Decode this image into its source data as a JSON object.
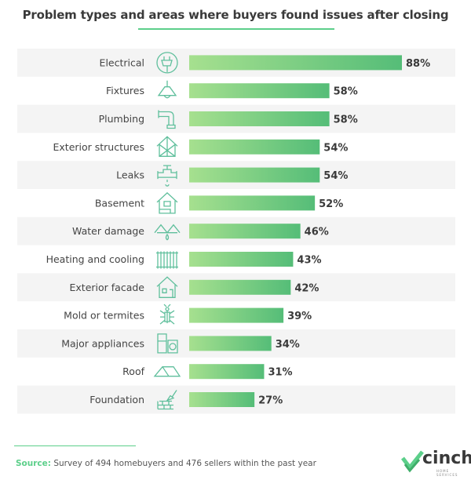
{
  "chart_data": {
    "type": "bar",
    "orientation": "horizontal",
    "title": "Problem types and areas where buyers found issues after closing",
    "categories": [
      "Electrical",
      "Fixtures",
      "Plumbing",
      "Exterior structures",
      "Leaks",
      "Basement",
      "Water damage",
      "Heating and cooling",
      "Exterior facade",
      "Mold or termites",
      "Major appliances",
      "Roof",
      "Foundation"
    ],
    "values": [
      88,
      58,
      58,
      54,
      54,
      52,
      46,
      43,
      42,
      39,
      34,
      31,
      27
    ],
    "value_labels": [
      "88%",
      "58%",
      "58%",
      "54%",
      "54%",
      "52%",
      "46%",
      "43%",
      "42%",
      "39%",
      "34%",
      "31%",
      "27%"
    ],
    "icons": [
      "plug-icon",
      "lamp-icon",
      "pipe-icon",
      "house-frame-icon",
      "valve-leak-icon",
      "basement-house-icon",
      "water-drop-roof-icon",
      "radiator-icon",
      "house-facade-icon",
      "termite-icon",
      "appliances-icon",
      "roof-icon",
      "bricks-trowel-icon"
    ],
    "unit": "%",
    "grid": false,
    "colors": {
      "bar_start": "#a6e08f",
      "bar_end": "#55bd78",
      "icon": "#5fbf9c",
      "row_band": "#f4f4f4",
      "accent": "#5ccf8a"
    }
  },
  "footer": {
    "source_label": "Source:",
    "source_text": " Survey of 494 homebuyers and 476 sellers within the past year"
  },
  "logo": {
    "name": "cinch",
    "tagline": "HOME SERVICES"
  }
}
